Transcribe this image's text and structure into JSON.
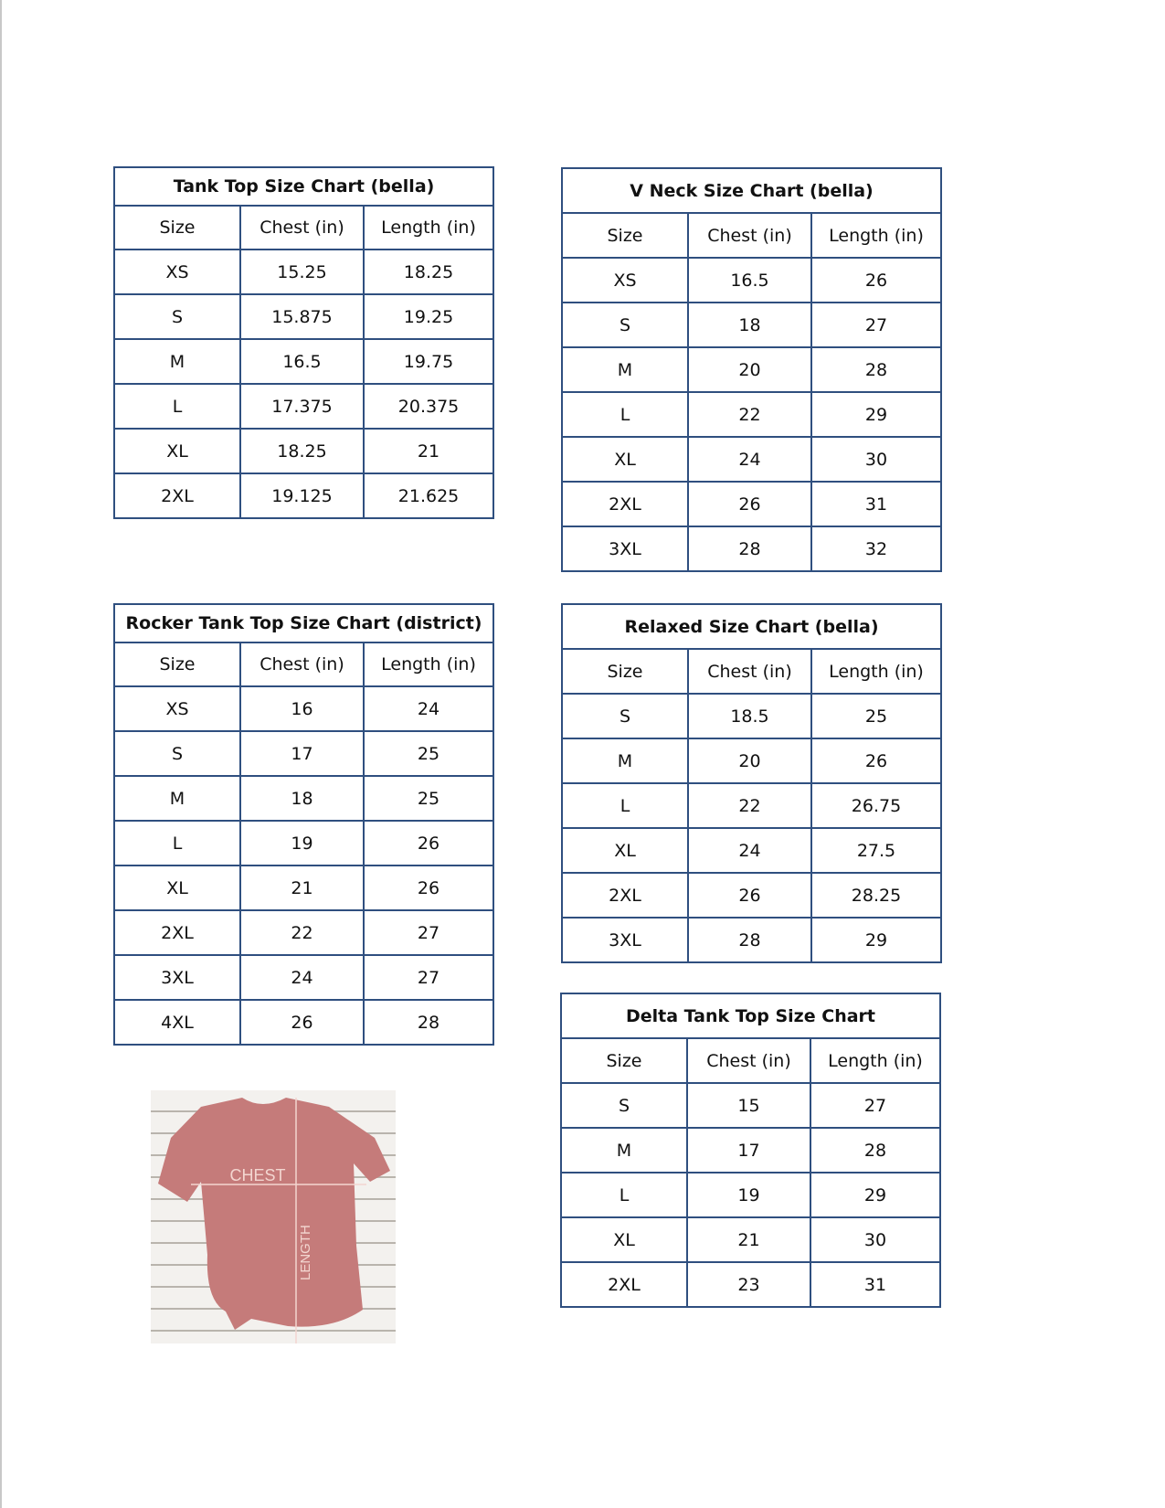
{
  "tables": [
    {
      "id": "tank-top",
      "title": "Tank Top Size Chart  (bella)",
      "headers": [
        "Size",
        "Chest (in)",
        "Length (in)"
      ],
      "rows": [
        [
          "XS",
          "15.25",
          "18.25"
        ],
        [
          "S",
          "15.875",
          "19.25"
        ],
        [
          "M",
          "16.5",
          "19.75"
        ],
        [
          "L",
          "17.375",
          "20.375"
        ],
        [
          "XL",
          "18.25",
          "21"
        ],
        [
          "2XL",
          "19.125",
          "21.625"
        ]
      ]
    },
    {
      "id": "v-neck",
      "title": "V Neck Size Chart  (bella)",
      "headers": [
        "Size",
        "Chest (in)",
        "Length (in)"
      ],
      "rows": [
        [
          "XS",
          "16.5",
          "26"
        ],
        [
          "S",
          "18",
          "27"
        ],
        [
          "M",
          "20",
          "28"
        ],
        [
          "L",
          "22",
          "29"
        ],
        [
          "XL",
          "24",
          "30"
        ],
        [
          "2XL",
          "26",
          "31"
        ],
        [
          "3XL",
          "28",
          "32"
        ]
      ]
    },
    {
      "id": "rocker-tank",
      "title": "Rocker Tank Top Size Chart (district)",
      "headers": [
        "Size",
        "Chest (in)",
        "Length (in)"
      ],
      "rows": [
        [
          "XS",
          "16",
          "24"
        ],
        [
          "S",
          "17",
          "25"
        ],
        [
          "M",
          "18",
          "25"
        ],
        [
          "L",
          "19",
          "26"
        ],
        [
          "XL",
          "21",
          "26"
        ],
        [
          "2XL",
          "22",
          "27"
        ],
        [
          "3XL",
          "24",
          "27"
        ],
        [
          "4XL",
          "26",
          "28"
        ]
      ]
    },
    {
      "id": "relaxed",
      "title": "Relaxed Size Chart (bella)",
      "headers": [
        "Size",
        "Chest (in)",
        "Length (in)"
      ],
      "rows": [
        [
          "S",
          "18.5",
          "25"
        ],
        [
          "M",
          "20",
          "26"
        ],
        [
          "L",
          "22",
          "26.75"
        ],
        [
          "XL",
          "24",
          "27.5"
        ],
        [
          "2XL",
          "26",
          "28.25"
        ],
        [
          "3XL",
          "28",
          "29"
        ]
      ]
    },
    {
      "id": "delta-tank",
      "title": "Delta Tank Top Size Chart",
      "headers": [
        "Size",
        "Chest (in)",
        "Length (in)"
      ],
      "rows": [
        [
          "S",
          "15",
          "27"
        ],
        [
          "M",
          "17",
          "28"
        ],
        [
          "L",
          "19",
          "29"
        ],
        [
          "XL",
          "21",
          "30"
        ],
        [
          "2XL",
          "23",
          "31"
        ]
      ]
    }
  ],
  "photo": {
    "chest_label": "CHEST",
    "length_label": "LENGTH",
    "shirt_color": "#c57b7a"
  },
  "border_color": "#2f4f7f"
}
